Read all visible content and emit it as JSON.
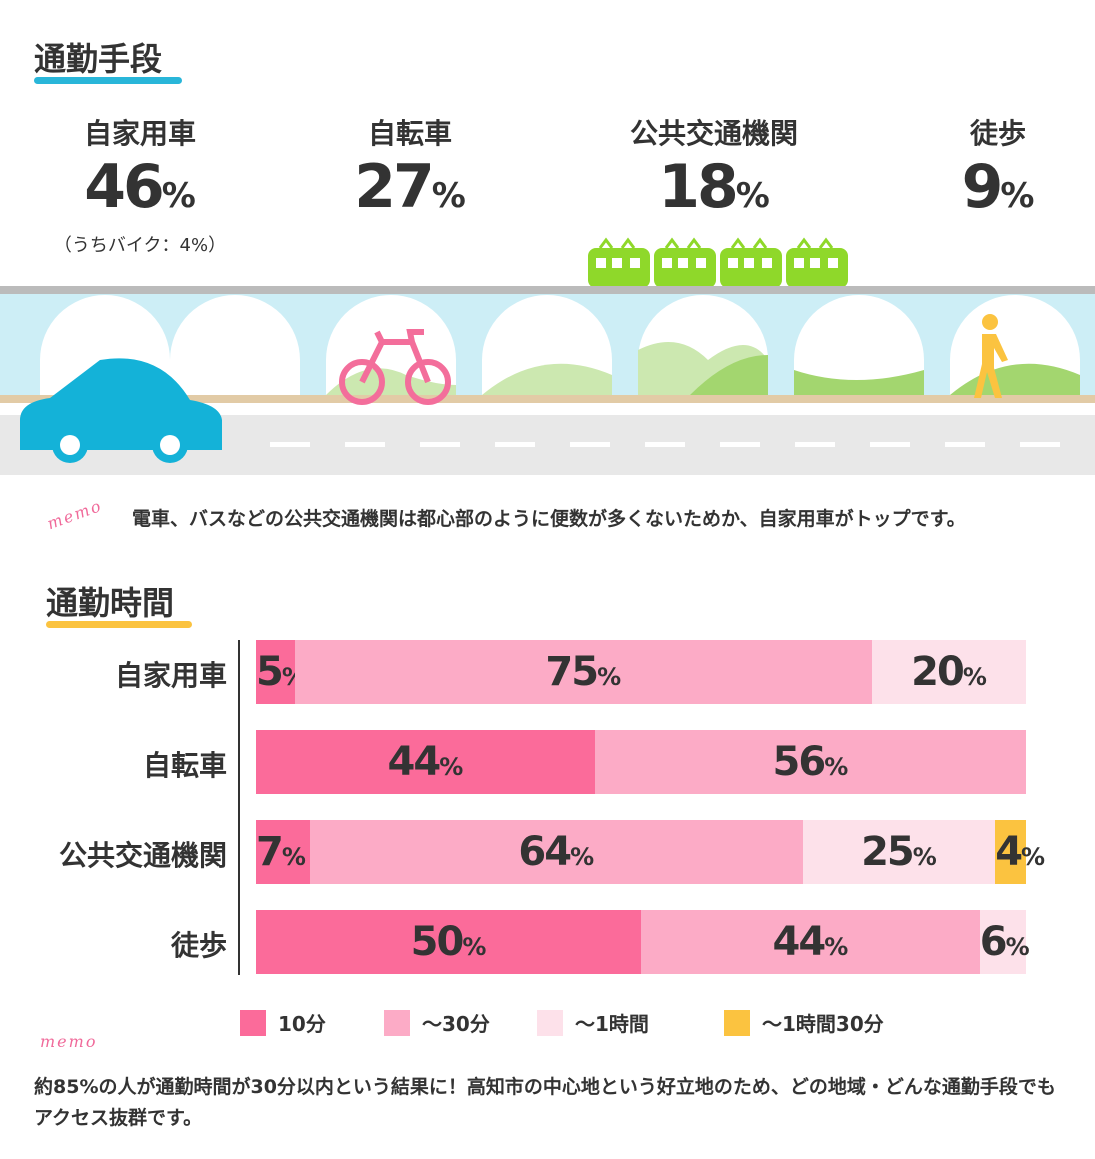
{
  "section1": {
    "title": "通勤手段",
    "modes": [
      {
        "label": "自家用車",
        "value": "46",
        "unit": "%",
        "note": "（うちバイク：4%）"
      },
      {
        "label": "自転車",
        "value": "27",
        "unit": "%"
      },
      {
        "label": "公共交通機関",
        "value": "18",
        "unit": "%"
      },
      {
        "label": "徒歩",
        "value": "9",
        "unit": "%"
      }
    ],
    "memo_tag": "memo",
    "memo": "電車、バスなどの公共交通機関は都心部のように便数が多くないためか、自家用車がトップです。"
  },
  "section2": {
    "title": "通勤時間",
    "memo_tag": "memo",
    "memo": "約85%の人が通勤時間が30分以内という結果に！高知市の中心地という好立地のため、どの地域・どんな通勤手段でもアクセス抜群です。"
  },
  "chart_data": {
    "type": "bar",
    "orientation": "horizontal",
    "stacked": true,
    "unit": "%",
    "categories": [
      "自家用車",
      "自転車",
      "公共交通機関",
      "徒歩"
    ],
    "series": [
      {
        "name": "10分",
        "color": "#fb6b9a",
        "values": [
          5,
          44,
          7,
          50
        ]
      },
      {
        "name": "～30分",
        "color": "#fcabc6",
        "values": [
          75,
          56,
          64,
          44
        ]
      },
      {
        "name": "～1時間",
        "color": "#fde1ea",
        "values": [
          20,
          0,
          25,
          6
        ]
      },
      {
        "name": "～1時間30分",
        "color": "#fbc340",
        "values": [
          0,
          0,
          4,
          0
        ]
      }
    ],
    "legend": "bottom"
  },
  "colors": {
    "car": "#14b2d8",
    "bike": "#f36e9b",
    "train": "#8fd82a",
    "walker": "#fbc340",
    "sky": "#cdeef6",
    "accent_blue": "#29b6d9",
    "accent_yellow": "#fbc340"
  }
}
